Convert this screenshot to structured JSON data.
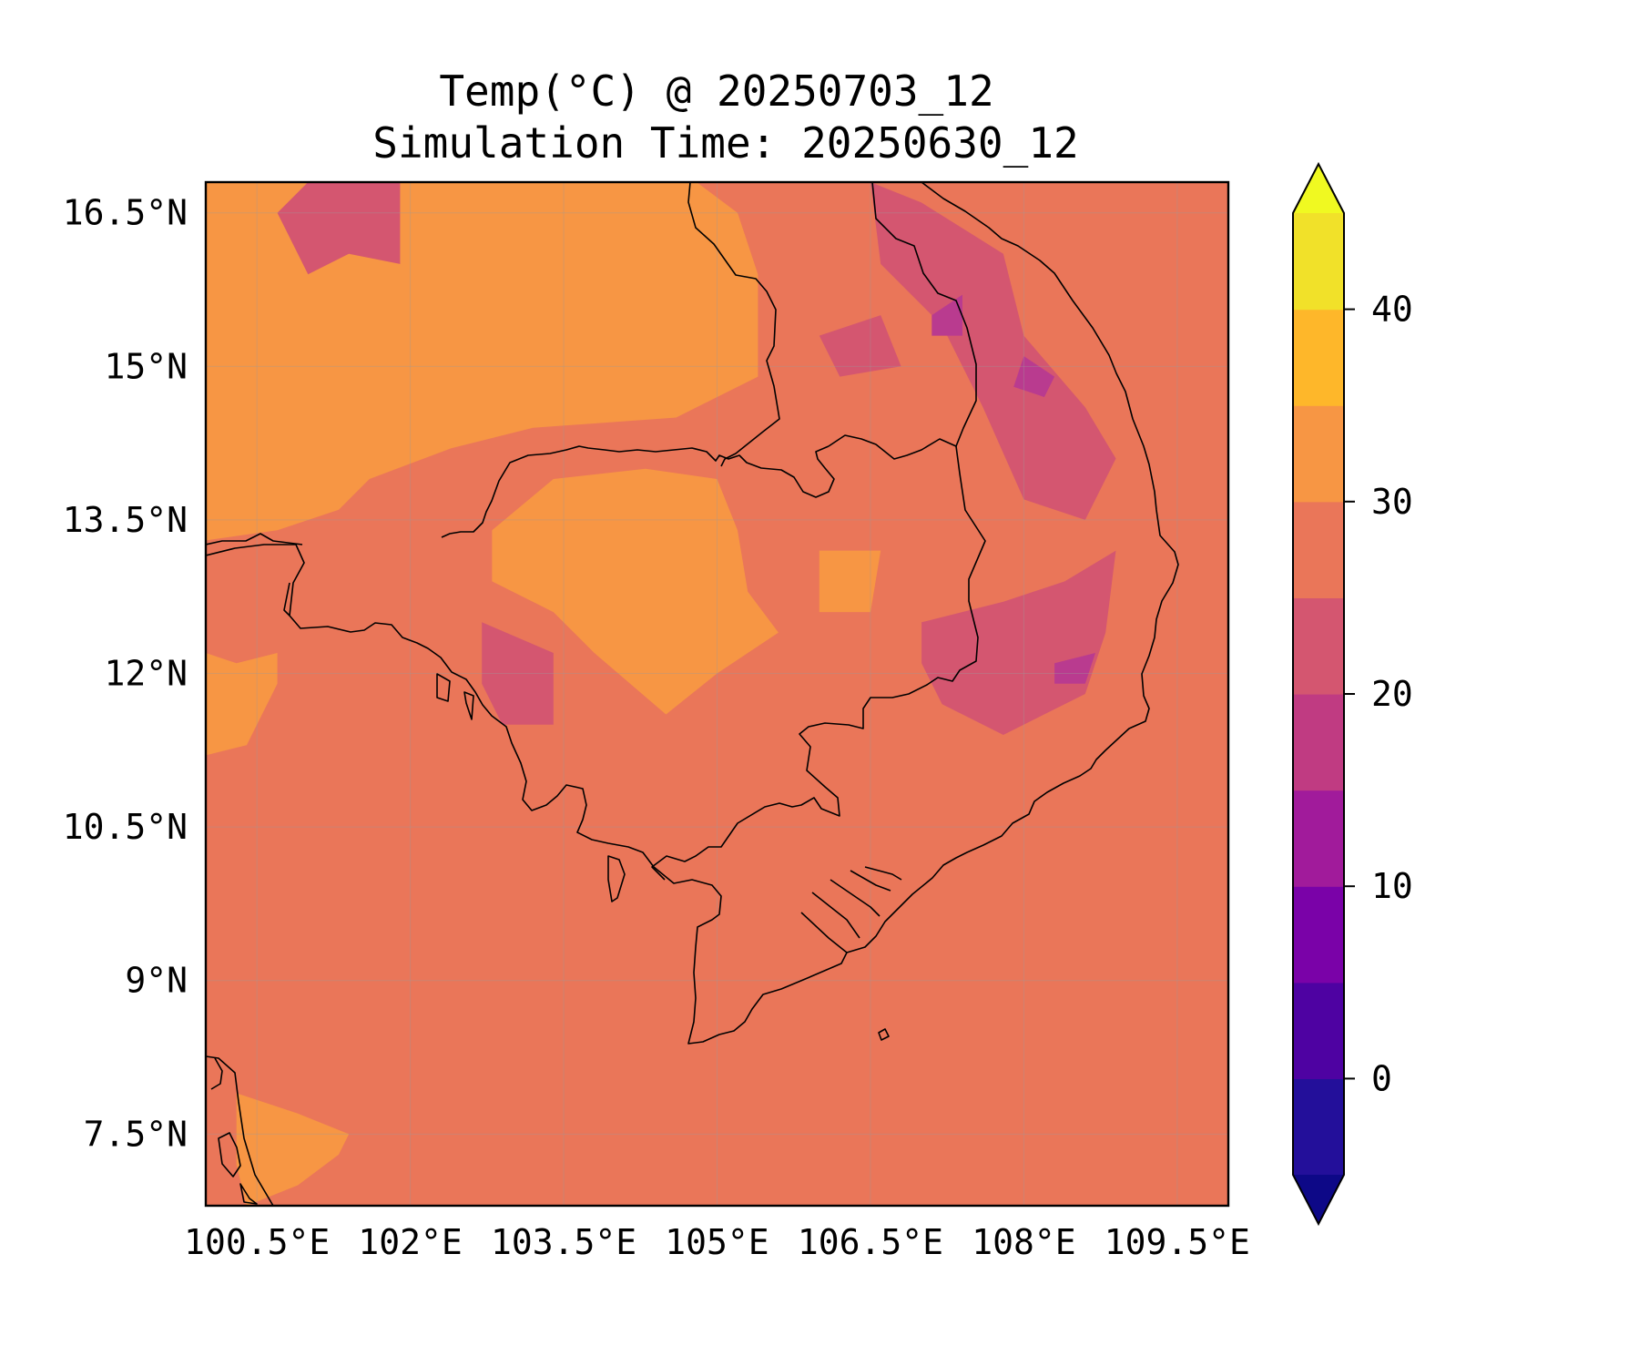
{
  "title_line1": "Temp(°C) @ 20250703_12",
  "title_line2": "Simulation Time: 20250630_12",
  "map": {
    "lon_range": [
      100.0,
      110.0
    ],
    "lat_range": [
      6.8,
      16.8
    ],
    "lon_ticks": [
      {
        "value": 100.5,
        "label": "100.5°E"
      },
      {
        "value": 102.0,
        "label": "102°E"
      },
      {
        "value": 103.5,
        "label": "103.5°E"
      },
      {
        "value": 105.0,
        "label": "105°E"
      },
      {
        "value": 106.5,
        "label": "106.5°E"
      },
      {
        "value": 108.0,
        "label": "108°E"
      },
      {
        "value": 109.5,
        "label": "109.5°E"
      }
    ],
    "lat_ticks": [
      {
        "value": 16.5,
        "label": "16.5°N"
      },
      {
        "value": 15.0,
        "label": "15°N"
      },
      {
        "value": 13.5,
        "label": "13.5°N"
      },
      {
        "value": 12.0,
        "label": "12°N"
      },
      {
        "value": 10.5,
        "label": "10.5°N"
      },
      {
        "value": 9.0,
        "label": "9°N"
      },
      {
        "value": 7.5,
        "label": "7.5°N"
      }
    ],
    "grid": true,
    "background_color": "#ea7659",
    "regions": [
      {
        "level": 30,
        "color": "#f79644",
        "points": [
          [
            100,
            16.8
          ],
          [
            104.8,
            16.8
          ],
          [
            105.2,
            16.5
          ],
          [
            105.4,
            15.9
          ],
          [
            105.4,
            14.9
          ],
          [
            104.6,
            14.5
          ],
          [
            103.2,
            14.4
          ],
          [
            102.4,
            14.2
          ],
          [
            101.6,
            13.9
          ],
          [
            101.3,
            13.6
          ],
          [
            100.7,
            13.4
          ],
          [
            100,
            13.3
          ]
        ]
      },
      {
        "level": 30,
        "color": "#f79644",
        "points": [
          [
            100,
            11.2
          ],
          [
            100.4,
            11.3
          ],
          [
            100.7,
            11.9
          ],
          [
            100.7,
            12.2
          ],
          [
            100.3,
            12.1
          ],
          [
            100,
            12.2
          ]
        ]
      },
      {
        "level": 30,
        "color": "#f79644",
        "points": [
          [
            100.3,
            7.9
          ],
          [
            100.9,
            7.7
          ],
          [
            101.4,
            7.5
          ],
          [
            101.3,
            7.3
          ],
          [
            100.9,
            7.0
          ],
          [
            100.4,
            6.8
          ],
          [
            100.3,
            7.2
          ]
        ]
      },
      {
        "level": 30,
        "color": "#f79644",
        "points": [
          [
            102.8,
            13.4
          ],
          [
            103.4,
            13.9
          ],
          [
            104.3,
            14.0
          ],
          [
            105.0,
            13.9
          ],
          [
            105.2,
            13.4
          ],
          [
            105.3,
            12.8
          ],
          [
            105.6,
            12.4
          ],
          [
            105.0,
            12.0
          ],
          [
            104.5,
            11.6
          ],
          [
            103.8,
            12.2
          ],
          [
            103.4,
            12.6
          ],
          [
            102.8,
            12.9
          ]
        ]
      },
      {
        "level": 30,
        "color": "#f79644",
        "points": [
          [
            106.0,
            13.2
          ],
          [
            106.6,
            13.2
          ],
          [
            106.5,
            12.6
          ],
          [
            106.0,
            12.6
          ]
        ]
      },
      {
        "level": 25,
        "color": "#d45670",
        "points": [
          [
            106.5,
            16.8
          ],
          [
            107.0,
            16.6
          ],
          [
            107.8,
            16.1
          ],
          [
            108.0,
            15.3
          ],
          [
            108.6,
            14.6
          ],
          [
            108.9,
            14.1
          ],
          [
            108.6,
            13.5
          ],
          [
            108.0,
            13.7
          ],
          [
            107.6,
            14.6
          ],
          [
            107.2,
            15.4
          ],
          [
            106.6,
            16.0
          ]
        ]
      },
      {
        "level": 25,
        "color": "#d45670",
        "points": [
          [
            107.0,
            12.5
          ],
          [
            107.8,
            12.7
          ],
          [
            108.4,
            12.9
          ],
          [
            108.9,
            13.2
          ],
          [
            108.8,
            12.4
          ],
          [
            108.6,
            11.8
          ],
          [
            107.8,
            11.4
          ],
          [
            107.2,
            11.7
          ],
          [
            107.0,
            12.1
          ]
        ]
      },
      {
        "level": 25,
        "color": "#d45670",
        "points": [
          [
            102.7,
            12.5
          ],
          [
            103.4,
            12.2
          ],
          [
            103.4,
            11.5
          ],
          [
            102.9,
            11.5
          ],
          [
            102.7,
            11.9
          ]
        ]
      },
      {
        "level": 25,
        "color": "#d45670",
        "points": [
          [
            106.0,
            15.3
          ],
          [
            106.6,
            15.5
          ],
          [
            106.8,
            15.0
          ],
          [
            106.2,
            14.9
          ]
        ]
      },
      {
        "level": 25,
        "color": "#d45670",
        "points": [
          [
            100.7,
            16.5
          ],
          [
            101.0,
            16.8
          ],
          [
            101.9,
            16.8
          ],
          [
            101.9,
            16.0
          ],
          [
            101.4,
            16.1
          ],
          [
            101.0,
            15.9
          ]
        ]
      },
      {
        "level": 20,
        "color": "#b93b8f",
        "points": [
          [
            108.0,
            15.1
          ],
          [
            108.3,
            14.9
          ],
          [
            108.2,
            14.7
          ],
          [
            107.9,
            14.8
          ]
        ]
      },
      {
        "level": 20,
        "color": "#b93b8f",
        "points": [
          [
            107.1,
            15.5
          ],
          [
            107.4,
            15.7
          ],
          [
            107.4,
            15.3
          ],
          [
            107.1,
            15.3
          ]
        ]
      },
      {
        "level": 20,
        "color": "#b93b8f",
        "points": [
          [
            108.3,
            12.1
          ],
          [
            108.7,
            12.2
          ],
          [
            108.6,
            11.9
          ],
          [
            108.3,
            11.9
          ]
        ]
      }
    ]
  },
  "colorbar": {
    "levels": [
      -5,
      0,
      5,
      10,
      15,
      20,
      25,
      30,
      35,
      40,
      45
    ],
    "colors": [
      "#230f9a",
      "#4e02a2",
      "#7a02a8",
      "#a11b9b",
      "#c03b82",
      "#d45670",
      "#ea7659",
      "#f79644",
      "#feb72a",
      "#f1e129"
    ],
    "under_color": "#0d0887",
    "over_color": "#f0f921",
    "ticks": [
      {
        "value": 0,
        "label": "0"
      },
      {
        "value": 10,
        "label": "10"
      },
      {
        "value": 20,
        "label": "20"
      },
      {
        "value": 30,
        "label": "30"
      },
      {
        "value": 40,
        "label": "40"
      }
    ]
  }
}
